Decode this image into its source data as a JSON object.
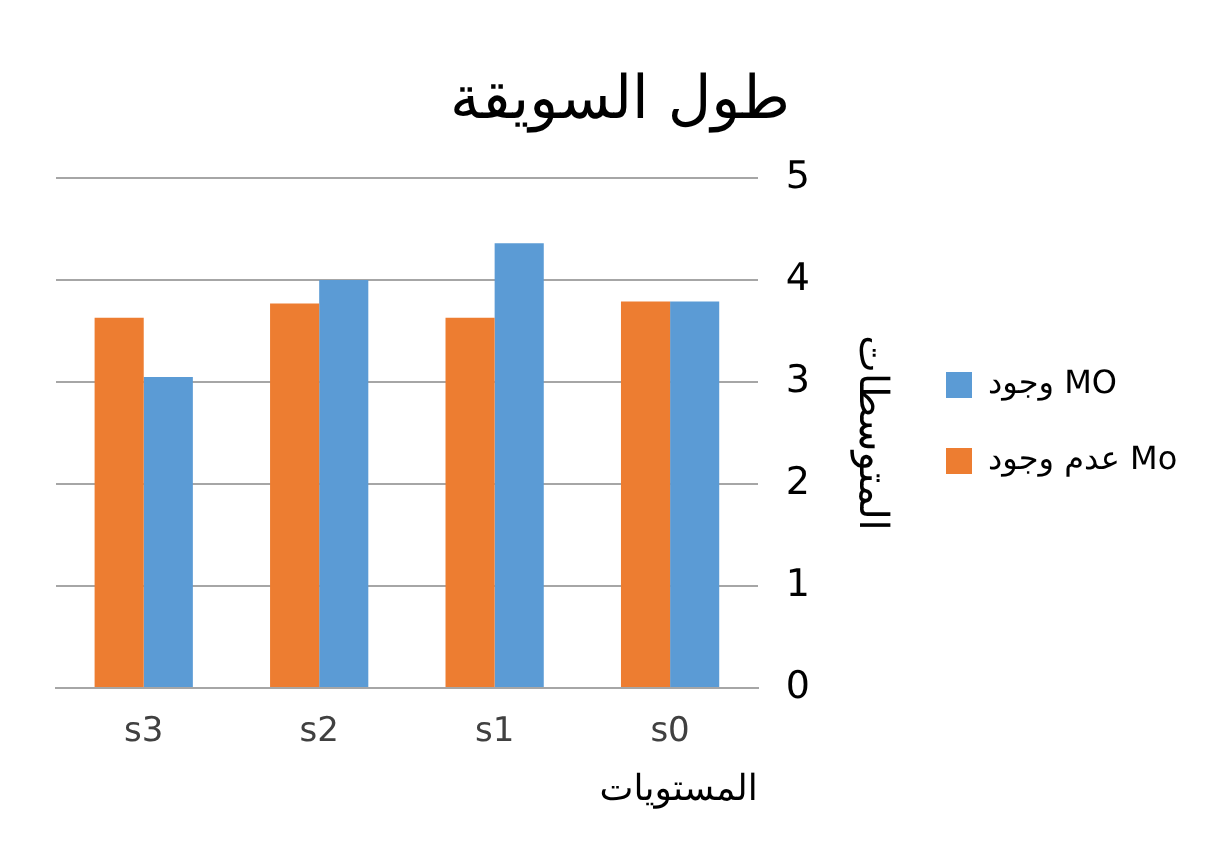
{
  "chart_data": {
    "type": "bar",
    "title": "طول السويقة",
    "xlabel": "المستويات",
    "ylabel": "المتوسطات",
    "categories": [
      "s3",
      "s2",
      "s1",
      "s0"
    ],
    "series": [
      {
        "name": "عدم وجود Mo",
        "color": "#ed7d31",
        "values": [
          3.63,
          3.77,
          3.63,
          3.79
        ]
      },
      {
        "name": "وجود MO",
        "color": "#5b9bd5",
        "values": [
          3.05,
          4.0,
          4.36,
          3.79
        ]
      }
    ],
    "ylim": [
      0,
      5
    ],
    "yticks": [
      0,
      1,
      2,
      3,
      4,
      5
    ],
    "grid": "y",
    "legend": "right"
  }
}
